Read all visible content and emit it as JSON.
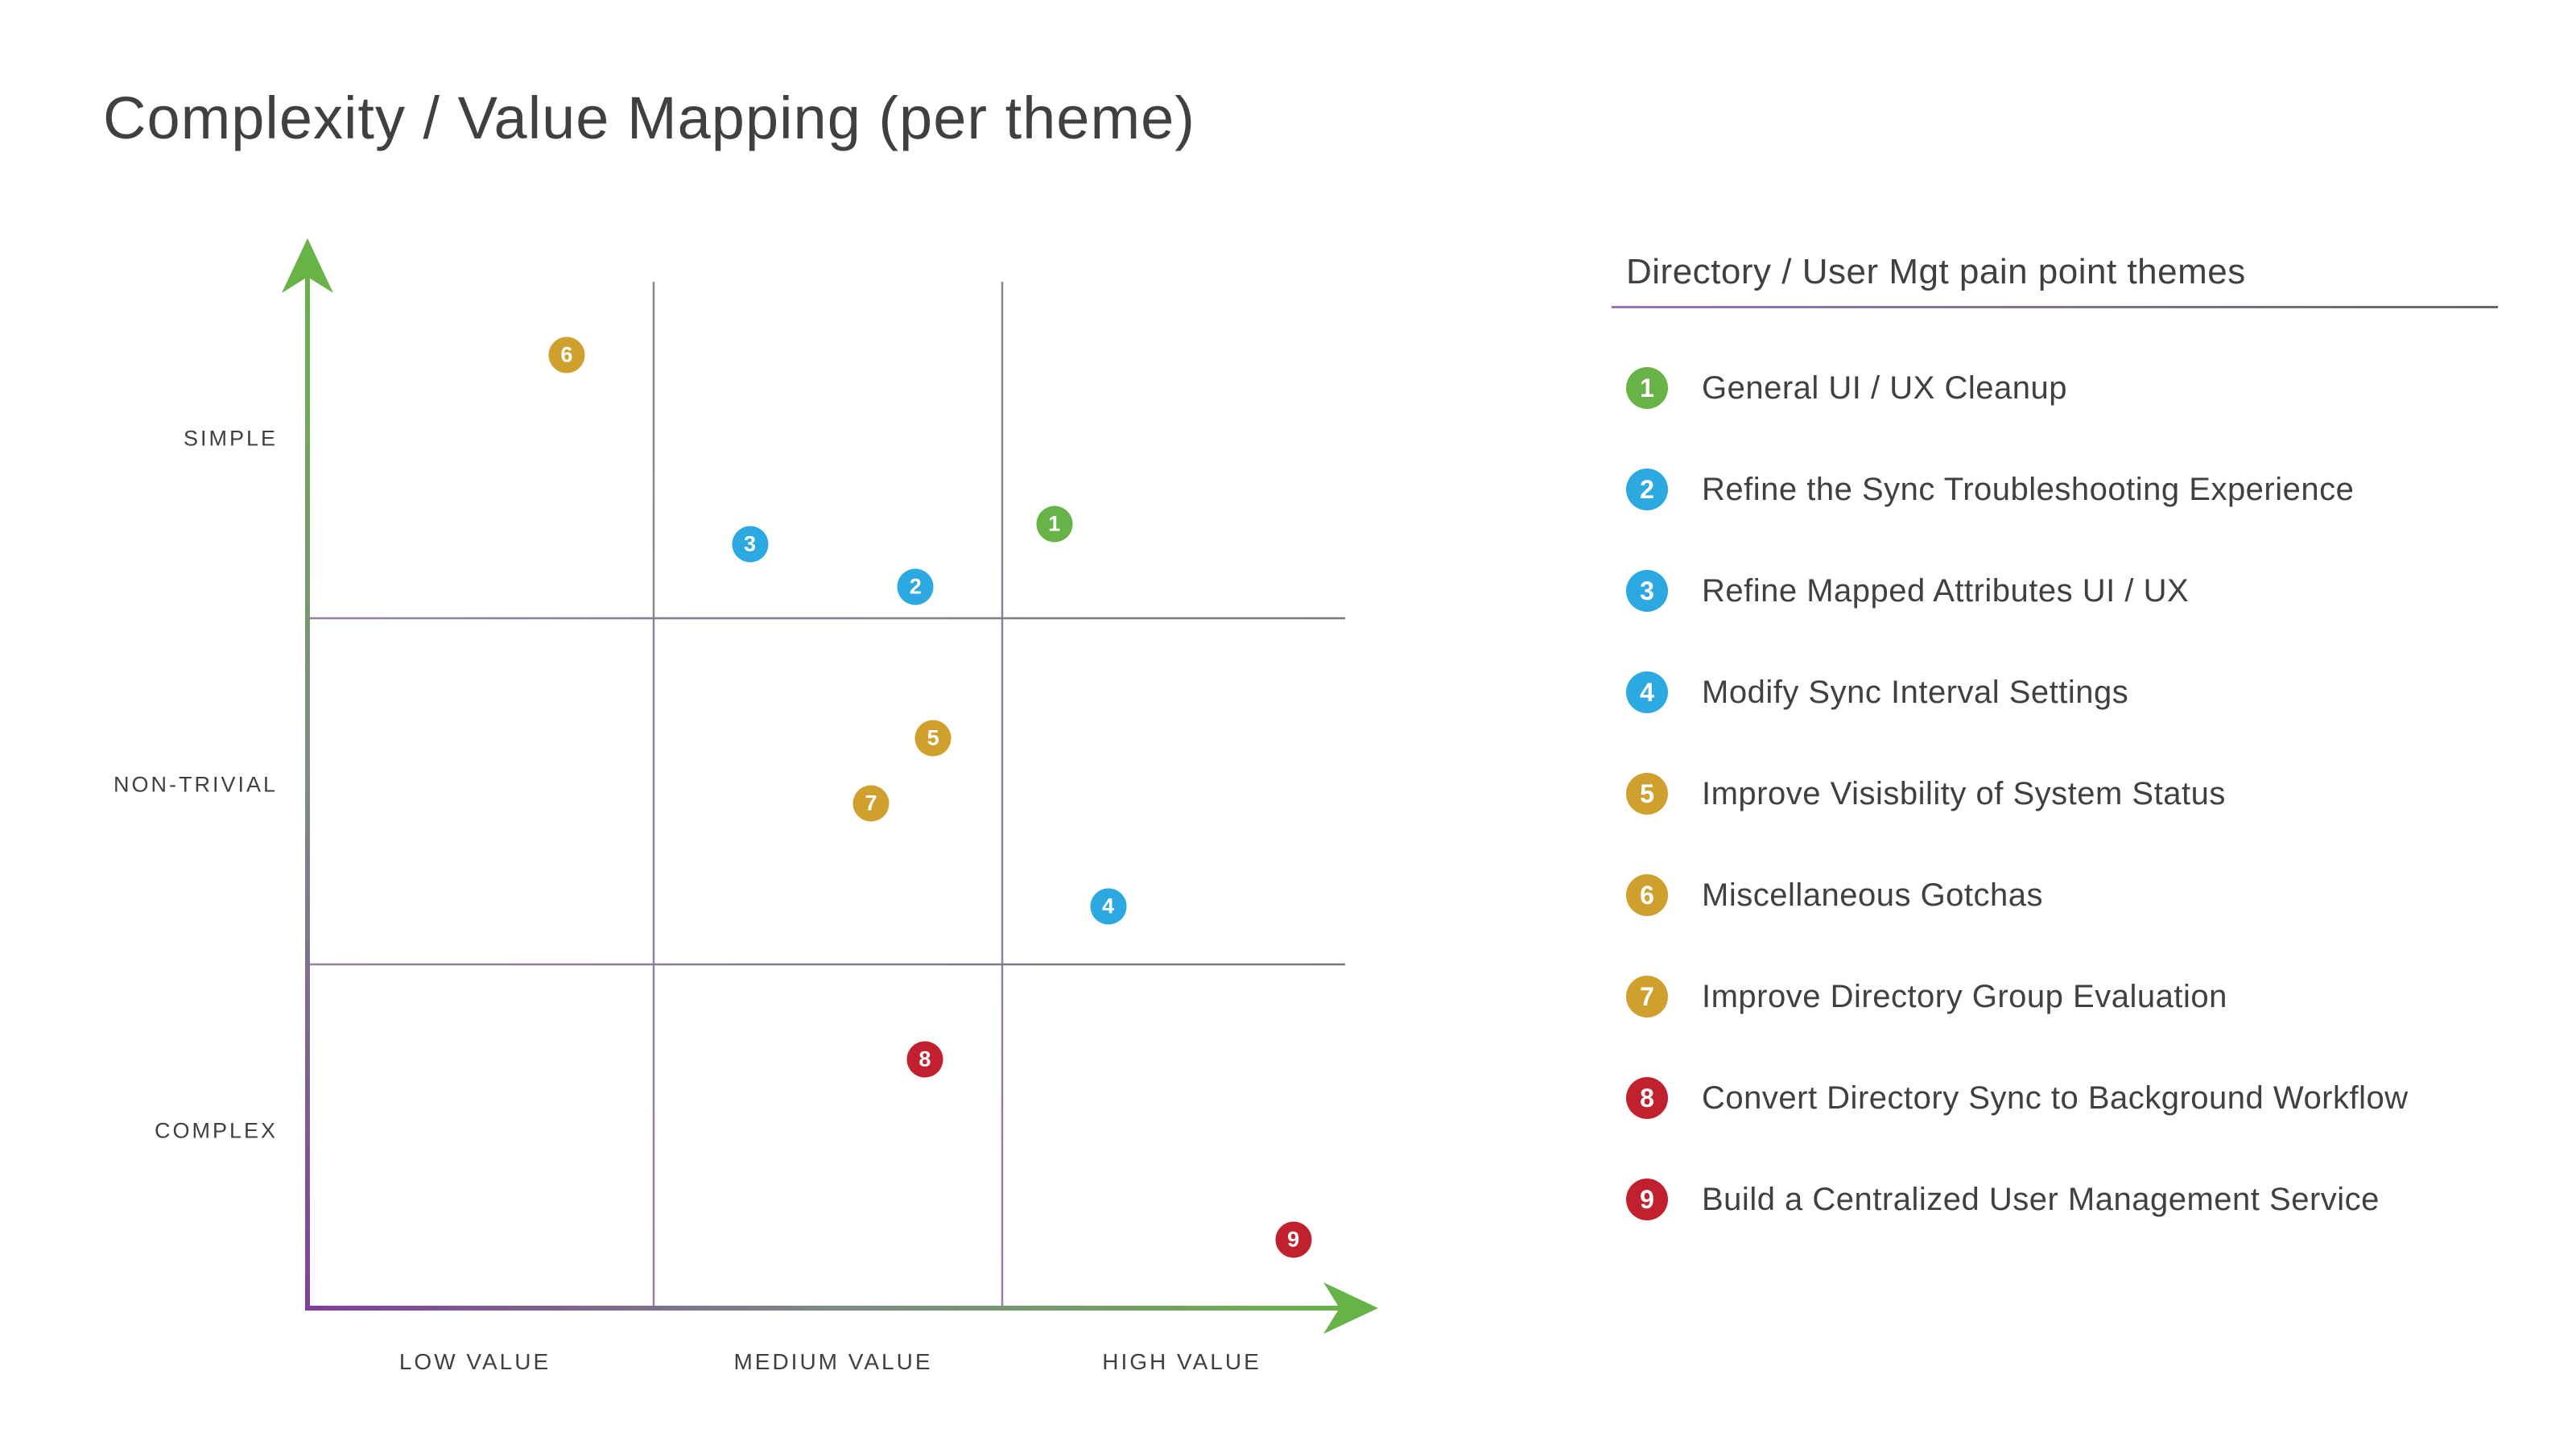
{
  "title": "Complexity / Value Mapping (per theme)",
  "legend": {
    "title": "Directory / User Mgt pain point themes"
  },
  "chart_data": {
    "type": "scatter",
    "title": "Complexity / Value Mapping (per theme)",
    "grid": "3x3 quadrant matrix, gridlines on",
    "x_axis": {
      "tick_labels": [
        "LOW VALUE",
        "MEDIUM VALUE",
        "HIGH VALUE"
      ],
      "direction": "value increases left to right"
    },
    "y_axis": {
      "tick_labels": [
        "SIMPLE",
        "NON-TRIVIAL",
        "COMPLEX"
      ],
      "direction": "complexity increases top to bottom"
    },
    "colors": {
      "green": "#68b347",
      "blue": "#2ba9e0",
      "gold": "#d0a02e",
      "red": "#c1202e",
      "purple_axis_end": "#7f3f98",
      "text": "#404042"
    },
    "points": [
      {
        "n": "1",
        "label": "General UI / UX Cleanup",
        "color": "green",
        "value_pct": 71.9,
        "complexity_pct": 23.6,
        "value_zone": "HIGH VALUE",
        "complexity_zone": "SIMPLE"
      },
      {
        "n": "2",
        "label": "Refine the Sync Troubleshooting Experience",
        "color": "blue",
        "value_pct": 58.5,
        "complexity_pct": 29.7,
        "value_zone": "MEDIUM VALUE",
        "complexity_zone": "SIMPLE"
      },
      {
        "n": "3",
        "label": "Refine Mapped Attributes UI / UX",
        "color": "blue",
        "value_pct": 42.5,
        "complexity_pct": 25.6,
        "value_zone": "MEDIUM VALUE",
        "complexity_zone": "SIMPLE"
      },
      {
        "n": "4",
        "label": "Modify Sync Interval Settings",
        "color": "blue",
        "value_pct": 77.1,
        "complexity_pct": 60.9,
        "value_zone": "HIGH VALUE",
        "complexity_zone": "NON-TRIVIAL"
      },
      {
        "n": "5",
        "label": "Improve Visisbility of System Status",
        "color": "gold",
        "value_pct": 60.2,
        "complexity_pct": 44.5,
        "value_zone": "MEDIUM VALUE",
        "complexity_zone": "NON-TRIVIAL"
      },
      {
        "n": "6",
        "label": "Miscellaneous Gotchas",
        "color": "gold",
        "value_pct": 24.8,
        "complexity_pct": 7.1,
        "value_zone": "LOW VALUE",
        "complexity_zone": "SIMPLE"
      },
      {
        "n": "7",
        "label": "Improve Directory Group Evaluation",
        "color": "gold",
        "value_pct": 54.2,
        "complexity_pct": 50.8,
        "value_zone": "MEDIUM VALUE",
        "complexity_zone": "NON-TRIVIAL"
      },
      {
        "n": "8",
        "label": "Convert Directory Sync to Background Workflow",
        "color": "red",
        "value_pct": 59.4,
        "complexity_pct": 75.8,
        "value_zone": "MEDIUM VALUE",
        "complexity_zone": "COMPLEX"
      },
      {
        "n": "9",
        "label": "Build a Centralized User Management Service",
        "color": "red",
        "value_pct": 95.0,
        "complexity_pct": 93.3,
        "value_zone": "HIGH VALUE",
        "complexity_zone": "COMPLEX"
      }
    ]
  }
}
